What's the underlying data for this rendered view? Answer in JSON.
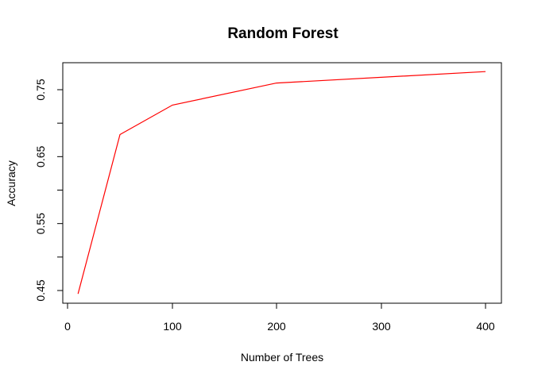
{
  "chart_data": {
    "type": "line",
    "title": "Random Forest",
    "xlabel": "Number of Trees",
    "ylabel": "Accuracy",
    "x_tick_labels": [
      "0",
      "100",
      "200",
      "300",
      "400"
    ],
    "y_tick_labels": [
      "0.45",
      "0.55",
      "0.65",
      "0.75"
    ],
    "x_tick_values": [
      0,
      100,
      200,
      300,
      400
    ],
    "y_tick_values": [
      0.45,
      0.55,
      0.65,
      0.75
    ],
    "series": [
      {
        "color": "#ff0000",
        "points": [
          {
            "x": 10,
            "y": 0.445
          },
          {
            "x": 50,
            "y": 0.683
          },
          {
            "x": 100,
            "y": 0.727
          },
          {
            "x": 200,
            "y": 0.76
          },
          {
            "x": 400,
            "y": 0.777
          }
        ]
      }
    ],
    "grid": false,
    "legend": "none"
  }
}
